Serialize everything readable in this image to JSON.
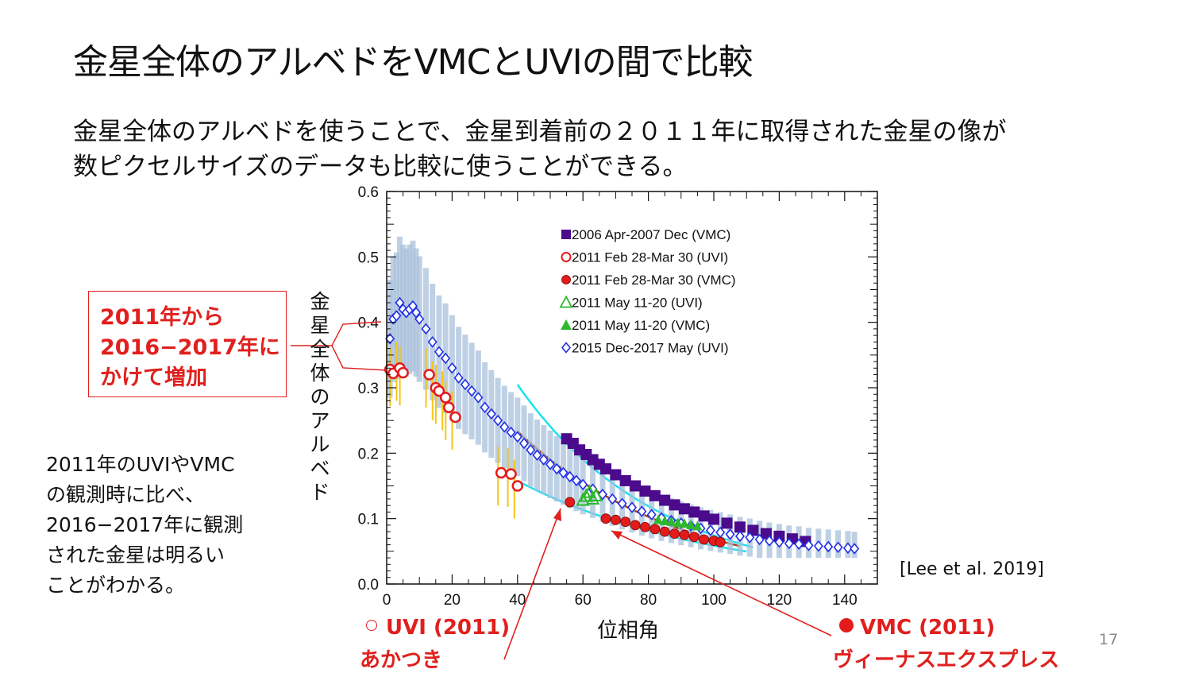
{
  "slide": {
    "title": "金星全体のアルベドをVMCとUVIの間で比較",
    "subtitle_line1": "金星全体のアルベドを使うことで、金星到着前の２０１１年に取得された金星の像が",
    "subtitle_line2": "数ピクセルサイズのデータも比較に使うことができる。",
    "callout": [
      "2011年から",
      "2016−2017年に",
      "かけて増加"
    ],
    "note": [
      "2011年のUVIやVMC",
      "の観測時に比べ、",
      "2016−2017年に観測",
      "された金星は明るい",
      "ことがわかる。"
    ],
    "citation": "[Lee et al. 2019]",
    "page_number": "17",
    "uvi_label": "UVI (2011)",
    "uvi_sublabel": "あかつき",
    "vmc_label": "VMC (2011)",
    "vmc_sublabel": "ヴィーナスエクスプレス"
  },
  "colors": {
    "accent_red": "#e0201e",
    "vmc_2006": "#4b0b8c",
    "uvi_2015": "#1f2ee6",
    "errorbar": "#a9c1dc",
    "uvi_2011_err": "#f5c518",
    "fit_cyan": "#19e3ef",
    "fit_brown": "#a0401a",
    "green": "#2db82d"
  },
  "chart_data": {
    "type": "scatter",
    "xlabel": "位相角",
    "ylabel": "金星全体のアルベド",
    "xlim": [
      0,
      150
    ],
    "ylim": [
      0.0,
      0.6
    ],
    "xticks": [
      "0",
      "20",
      "40",
      "60",
      "80",
      "100",
      "120",
      "140"
    ],
    "yticks": [
      "0.0",
      "0.1",
      "0.2",
      "0.3",
      "0.4",
      "0.5",
      "0.6"
    ],
    "legend_position": "top-right",
    "series": [
      {
        "name": "2006 Apr-2007 Dec (VMC)",
        "marker": "filled-square",
        "color": "#4b0b8c",
        "x": [
          55,
          57,
          59,
          61,
          63,
          65,
          67,
          70,
          73,
          76,
          79,
          82,
          85,
          88,
          91,
          94,
          97,
          100,
          104,
          108,
          112,
          116,
          120,
          124,
          128
        ],
        "y": [
          0.222,
          0.215,
          0.205,
          0.198,
          0.19,
          0.183,
          0.176,
          0.167,
          0.158,
          0.15,
          0.142,
          0.135,
          0.128,
          0.121,
          0.115,
          0.11,
          0.104,
          0.099,
          0.093,
          0.087,
          0.082,
          0.077,
          0.073,
          0.069,
          0.065
        ]
      },
      {
        "name": "2011 Feb 28-Mar 30 (UVI)",
        "marker": "open-circle",
        "color": "#e41b1b",
        "x": [
          1,
          2,
          4,
          5,
          13,
          15,
          16,
          18,
          19,
          21,
          35,
          38,
          40
        ],
        "y": [
          0.328,
          0.322,
          0.33,
          0.323,
          0.32,
          0.3,
          0.295,
          0.285,
          0.27,
          0.255,
          0.17,
          0.168,
          0.15
        ]
      },
      {
        "name": "2011 Feb 28-Mar 30 (VMC)",
        "marker": "filled-circle",
        "color": "#e41b1b",
        "x": [
          56,
          67,
          70,
          73,
          76,
          79,
          82,
          85,
          88,
          91,
          94,
          97,
          100,
          102
        ],
        "y": [
          0.125,
          0.1,
          0.098,
          0.095,
          0.09,
          0.087,
          0.084,
          0.08,
          0.077,
          0.075,
          0.072,
          0.068,
          0.066,
          0.064
        ]
      },
      {
        "name": "2011 May 11-20 (UVI)",
        "marker": "open-triangle",
        "color": "#2db82d",
        "x": [
          60,
          61,
          62,
          63,
          64
        ],
        "y": [
          0.128,
          0.134,
          0.14,
          0.13,
          0.135
        ]
      },
      {
        "name": "2011 May 11-20 (VMC)",
        "marker": "filled-triangle",
        "color": "#2db82d",
        "x": [
          83,
          85,
          87,
          89,
          91,
          93,
          95
        ],
        "y": [
          0.098,
          0.096,
          0.095,
          0.093,
          0.092,
          0.09,
          0.088
        ]
      },
      {
        "name": "2015 Dec-2017 May (UVI)",
        "marker": "open-diamond",
        "color": "#1f2ee6",
        "x": [
          1,
          2,
          3,
          4,
          5,
          6,
          7,
          8,
          9,
          10,
          12,
          14,
          16,
          18,
          20,
          22,
          24,
          26,
          28,
          30,
          32,
          34,
          36,
          38,
          40,
          42,
          44,
          46,
          48,
          50,
          52,
          54,
          56,
          58,
          60,
          63,
          66,
          69,
          72,
          75,
          78,
          81,
          84,
          87,
          90,
          93,
          96,
          99,
          102,
          105,
          108,
          111,
          114,
          117,
          120,
          123,
          126,
          129,
          132,
          135,
          138,
          141,
          143
        ],
        "y": [
          0.375,
          0.405,
          0.41,
          0.43,
          0.42,
          0.415,
          0.42,
          0.425,
          0.415,
          0.405,
          0.39,
          0.37,
          0.355,
          0.345,
          0.33,
          0.315,
          0.305,
          0.295,
          0.285,
          0.27,
          0.26,
          0.25,
          0.24,
          0.232,
          0.225,
          0.215,
          0.205,
          0.197,
          0.19,
          0.183,
          0.176,
          0.17,
          0.164,
          0.158,
          0.152,
          0.145,
          0.137,
          0.13,
          0.123,
          0.117,
          0.111,
          0.106,
          0.101,
          0.097,
          0.093,
          0.089,
          0.085,
          0.082,
          0.079,
          0.076,
          0.073,
          0.071,
          0.068,
          0.066,
          0.064,
          0.062,
          0.061,
          0.059,
          0.058,
          0.057,
          0.056,
          0.055,
          0.054
        ]
      }
    ]
  }
}
